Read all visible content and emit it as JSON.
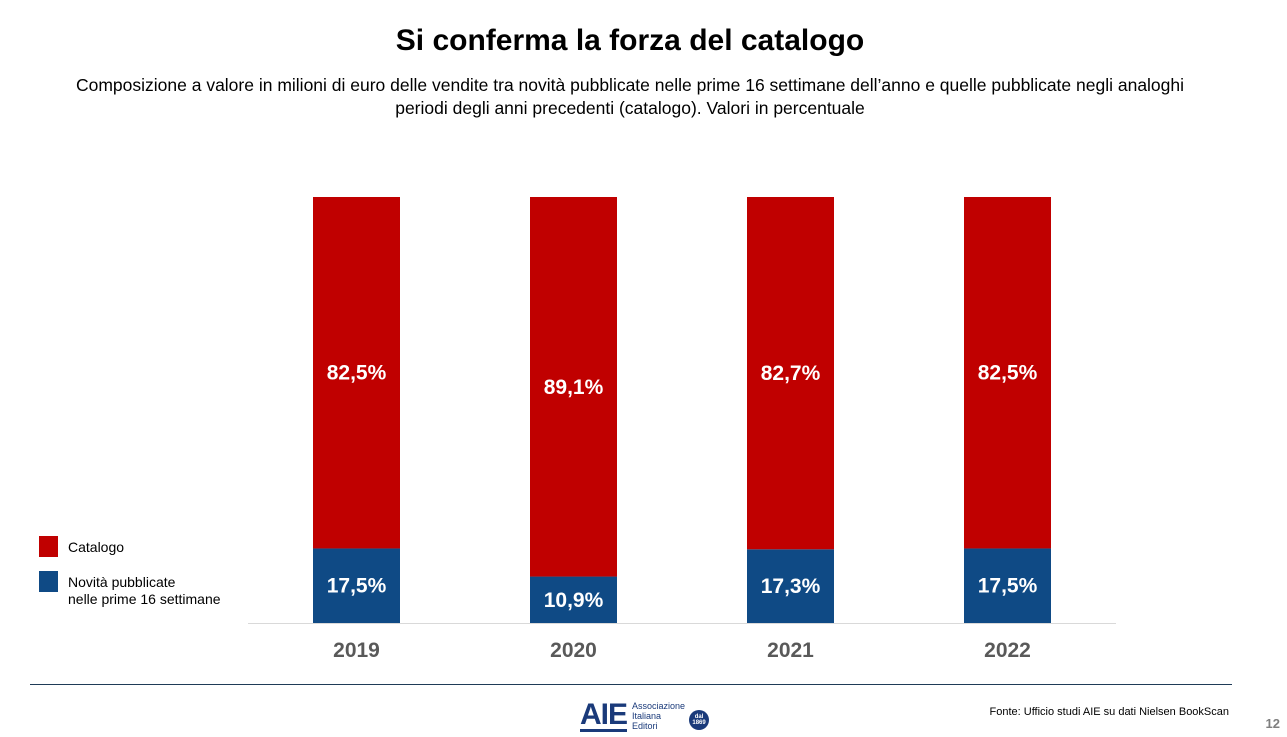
{
  "title": "Si conferma la forza del catalogo",
  "subtitle": "Composizione a valore in milioni di euro delle vendite tra novità pubblicate nelle prime 16 settimane dell’anno e quelle pubblicate negli analoghi periodi degli anni precedenti (catalogo). Valori in percentuale",
  "chart_data": {
    "type": "bar",
    "stacked": true,
    "categories": [
      "2019",
      "2020",
      "2021",
      "2022"
    ],
    "series": [
      {
        "name": "Novità pubblicate nelle prime 16 settimane",
        "values": [
          17.5,
          10.9,
          17.3,
          17.5
        ],
        "labels": [
          "17,5%",
          "10,9%",
          "17,3%",
          "17,5%"
        ],
        "color": "#0f4a85"
      },
      {
        "name": "Catalogo",
        "values": [
          82.5,
          89.1,
          82.7,
          82.5
        ],
        "labels": [
          "82,5%",
          "89,1%",
          "82,7%",
          "82,5%"
        ],
        "color": "#c00000"
      }
    ],
    "ylim": [
      0,
      100
    ],
    "grid": false,
    "legend_position": "left"
  },
  "legend": [
    {
      "label": "Catalogo",
      "color": "#c00000"
    },
    {
      "label": "Novità pubblicate\nnelle prime 16 settimane",
      "color": "#0f4a85"
    }
  ],
  "logo": {
    "mark": "AIE",
    "text": "Associazione\nItaliana\nEditori",
    "badge": "dal\n1869"
  },
  "source": "Fonte: Ufficio studi AIE su dati Nielsen BookScan",
  "page_number": "12"
}
